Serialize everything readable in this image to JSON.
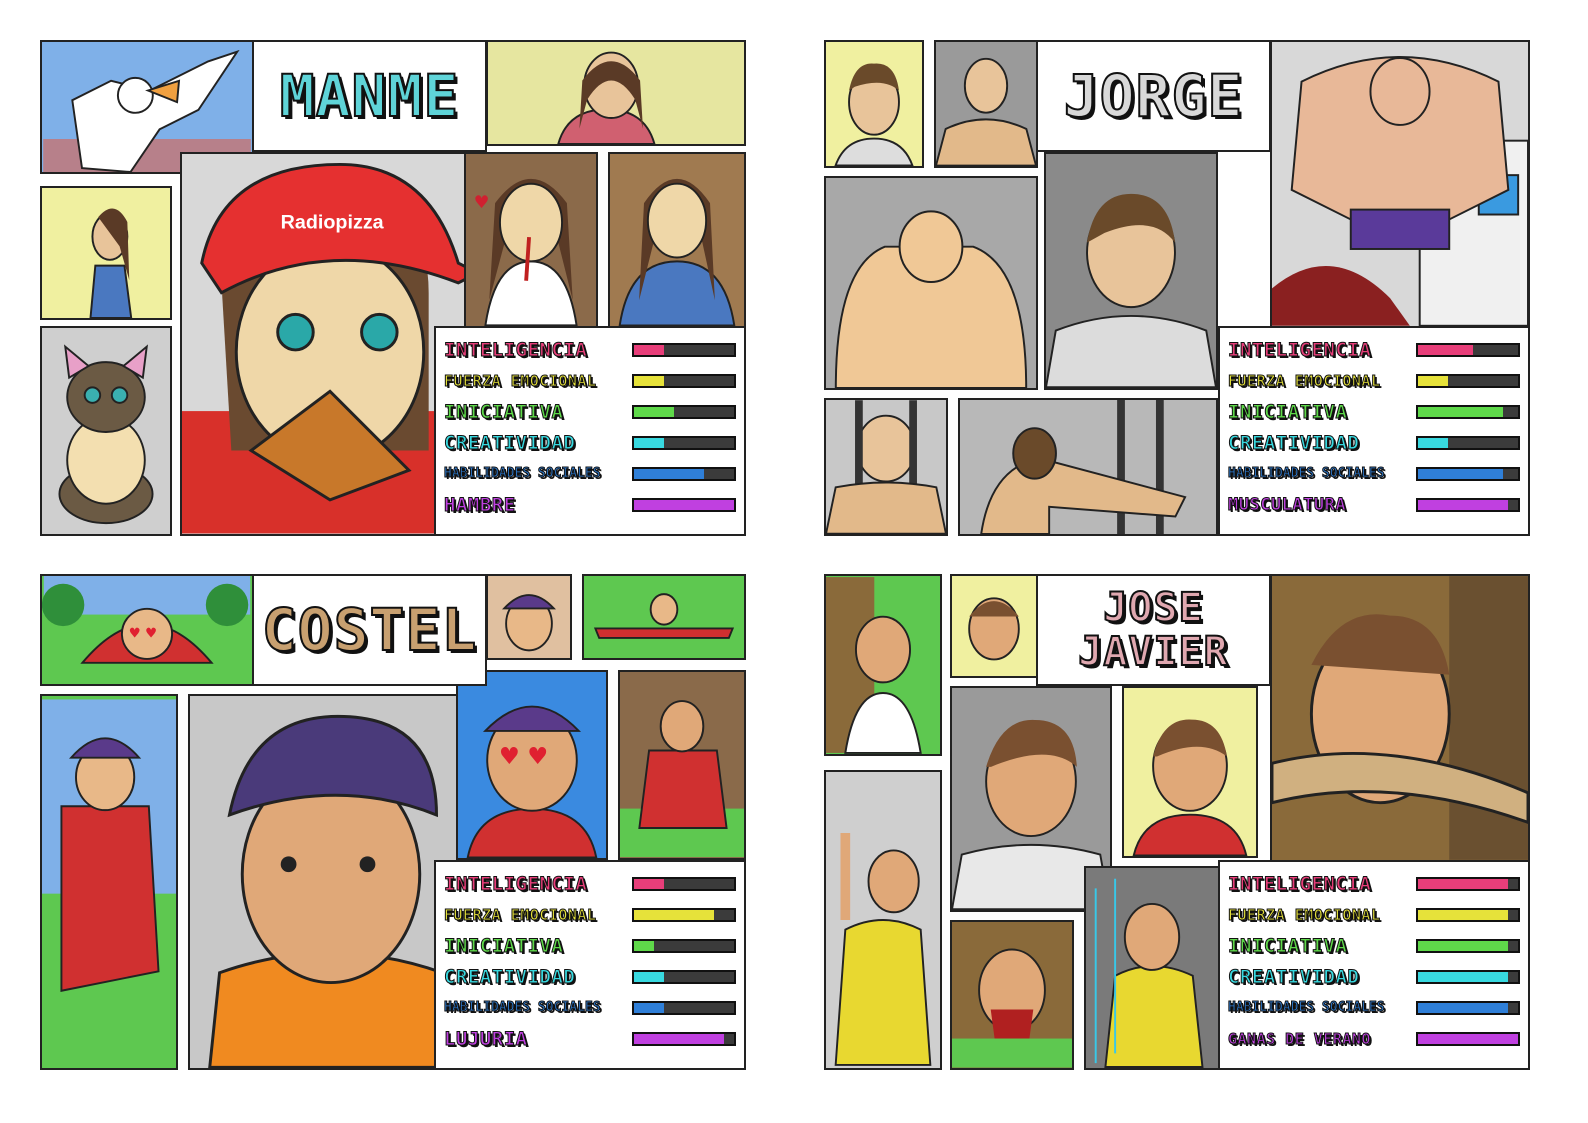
{
  "cards": [
    {
      "name_lines": [
        "MANME"
      ],
      "name_color": "#5fd4d8",
      "stats": [
        {
          "label": "INTELIGENCIA",
          "value": 0.3,
          "color": "#e83e7a"
        },
        {
          "label": "FUERZA EMOCIONAL",
          "value": 0.3,
          "color": "#e6e23a"
        },
        {
          "label": "INICIATIVA",
          "value": 0.4,
          "color": "#5fd94a"
        },
        {
          "label": "CREATIVIDAD",
          "value": 0.3,
          "color": "#38d9e0"
        },
        {
          "label": "HABILIDADES SOCIALES",
          "value": 0.7,
          "color": "#2f7fd8"
        },
        {
          "label": "HAMBRE",
          "value": 1.0,
          "color": "#c040e0"
        }
      ]
    },
    {
      "name_lines": [
        "JORGE"
      ],
      "name_color": "#d8d8d8",
      "stats": [
        {
          "label": "INTELIGENCIA",
          "value": 0.55,
          "color": "#e83e7a"
        },
        {
          "label": "FUERZA EMOCIONAL",
          "value": 0.3,
          "color": "#e6e23a"
        },
        {
          "label": "INICIATIVA",
          "value": 0.85,
          "color": "#5fd94a"
        },
        {
          "label": "CREATIVIDAD",
          "value": 0.3,
          "color": "#38d9e0"
        },
        {
          "label": "HABILIDADES SOCIALES",
          "value": 0.85,
          "color": "#2f7fd8"
        },
        {
          "label": "MUSCULATURA",
          "value": 0.9,
          "color": "#c040e0"
        }
      ]
    },
    {
      "name_lines": [
        "COSTEL"
      ],
      "name_color": "#c8a070",
      "stats": [
        {
          "label": "INTELIGENCIA",
          "value": 0.3,
          "color": "#e83e7a"
        },
        {
          "label": "FUERZA EMOCIONAL",
          "value": 0.8,
          "color": "#e6e23a"
        },
        {
          "label": "INICIATIVA",
          "value": 0.2,
          "color": "#5fd94a"
        },
        {
          "label": "CREATIVIDAD",
          "value": 0.3,
          "color": "#38d9e0"
        },
        {
          "label": "HABILIDADES SOCIALES",
          "value": 0.3,
          "color": "#2f7fd8"
        },
        {
          "label": "LUJURIA",
          "value": 0.9,
          "color": "#c040e0"
        }
      ]
    },
    {
      "name_lines": [
        "JOSE",
        "JAVIER"
      ],
      "name_color": "#e0a8b0",
      "stats": [
        {
          "label": "INTELIGENCIA",
          "value": 0.9,
          "color": "#e83e7a"
        },
        {
          "label": "FUERZA EMOCIONAL",
          "value": 0.9,
          "color": "#e6e23a"
        },
        {
          "label": "INICIATIVA",
          "value": 0.9,
          "color": "#5fd94a"
        },
        {
          "label": "CREATIVIDAD",
          "value": 0.9,
          "color": "#38d9e0"
        },
        {
          "label": "HABILIDADES SOCIALES",
          "value": 0.9,
          "color": "#2f7fd8"
        },
        {
          "label": "GANAS DE VERANO",
          "value": 1.0,
          "color": "#c040e0"
        }
      ]
    }
  ],
  "colors": {
    "panel_yellow": "#f0f0a0",
    "sky_blue": "#7fb0e8",
    "grass_green": "#5ec850",
    "wall_grey": "#bcbcbc",
    "skin": "#e8c49a"
  },
  "labels": {
    "cap_text": "Radiopizza"
  }
}
